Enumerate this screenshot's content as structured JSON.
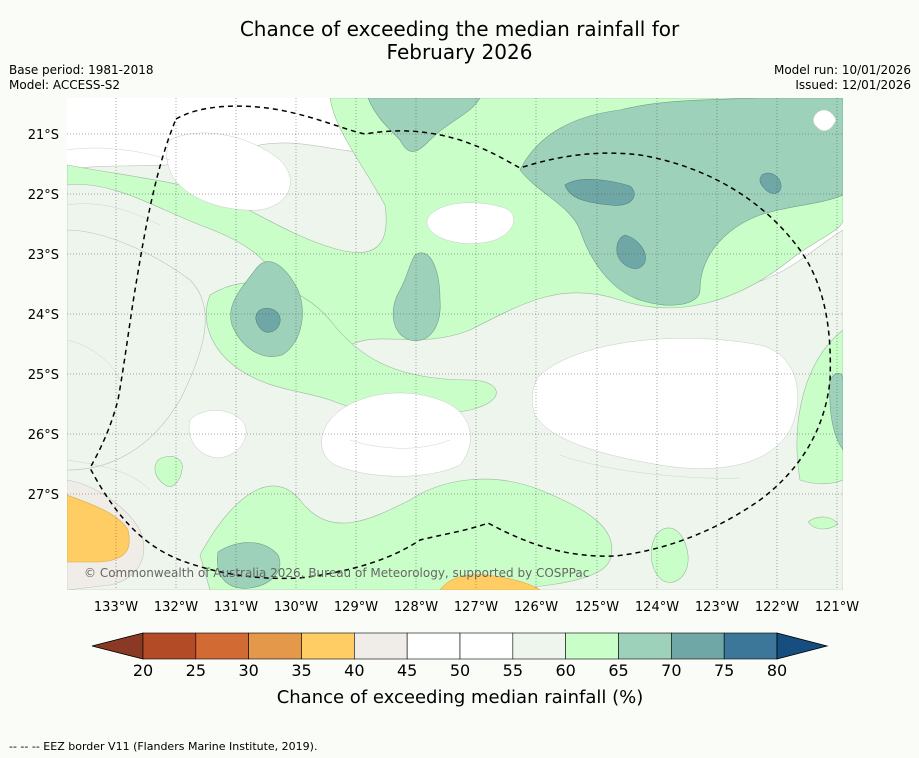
{
  "title": {
    "line1": "Chance of exceeding the median rainfall for",
    "line2": "February 2026"
  },
  "meta": {
    "base_period": "Base period: 1981-2018",
    "model": "Model: ACCESS-S2",
    "model_run": "Model run: 10/01/2026",
    "issued": "Issued: 12/01/2026"
  },
  "map": {
    "lat_labels": [
      "21°S",
      "22°S",
      "23°S",
      "24°S",
      "25°S",
      "26°S",
      "27°S"
    ],
    "lon_labels": [
      "133°W",
      "132°W",
      "131°W",
      "130°W",
      "129°W",
      "128°W",
      "127°W",
      "126°W",
      "125°W",
      "124°W",
      "123°W",
      "122°W",
      "121°W"
    ],
    "copyright": "© Commonwealth of Australia 2026, Bureau of Meteorology, supported by COSPPac",
    "eez_label": "EEZ border V11 (Flanders Marine Institute, 2019)."
  },
  "colorbar": {
    "label": "Chance of exceeding median rainfall (%)",
    "ticks": [
      "20",
      "25",
      "30",
      "35",
      "40",
      "45",
      "50",
      "55",
      "60",
      "65",
      "70",
      "75",
      "80"
    ],
    "colors": [
      "#b34b26",
      "#d26a34",
      "#e3984a",
      "#ffcd64",
      "#f0ede8",
      "#ffffff",
      "#ffffff",
      "#edf5ec",
      "#c9fec9",
      "#9ed1ba",
      "#6fa6a6",
      "#3c779a"
    ],
    "low_extend_color": "#8a3a24",
    "high_extend_color": "#164e80"
  },
  "footer": {
    "legend_line": "--  --  -- EEZ border V11 (Flanders Marine Institute, 2019)."
  }
}
